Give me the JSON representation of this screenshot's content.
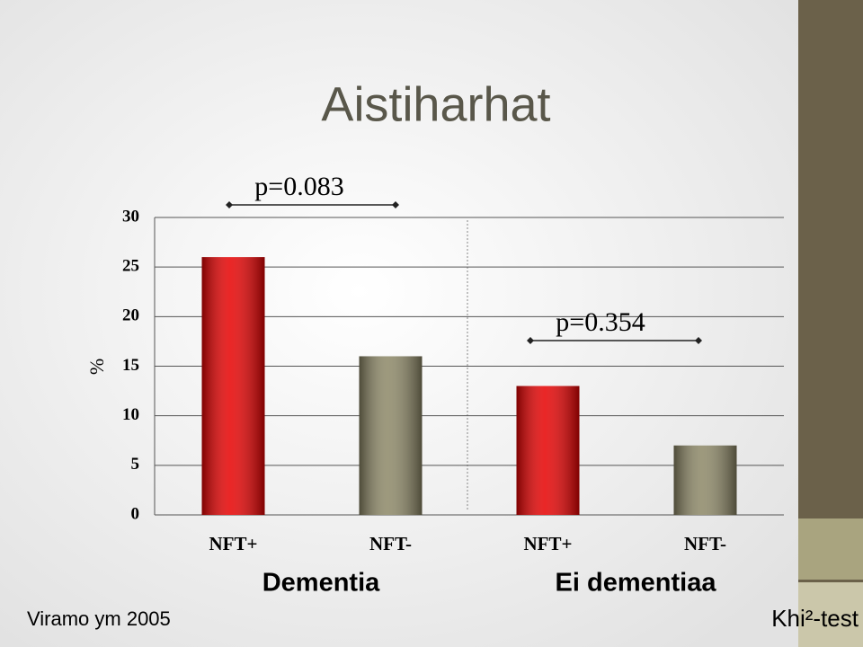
{
  "chart_data": {
    "type": "bar",
    "title": "Aistiharhat",
    "y_label": "%",
    "categories": [
      "NFT+",
      "NFT-",
      "NFT+",
      "NFT-"
    ],
    "values": [
      26,
      16,
      13,
      7
    ],
    "colors": [
      "#e60000",
      "#8c8766",
      "#e60000",
      "#8c8766"
    ],
    "groups": [
      "Dementia",
      "Ei dementiaa"
    ],
    "annotations": [
      "p=0.083",
      "p=0.354"
    ],
    "ylim": [
      0,
      30
    ],
    "yticks": [
      0,
      5,
      10,
      15,
      20,
      25,
      30
    ],
    "grid": true
  },
  "footer": {
    "source": "Viramo ym 2005",
    "test": "Khi²-test"
  }
}
